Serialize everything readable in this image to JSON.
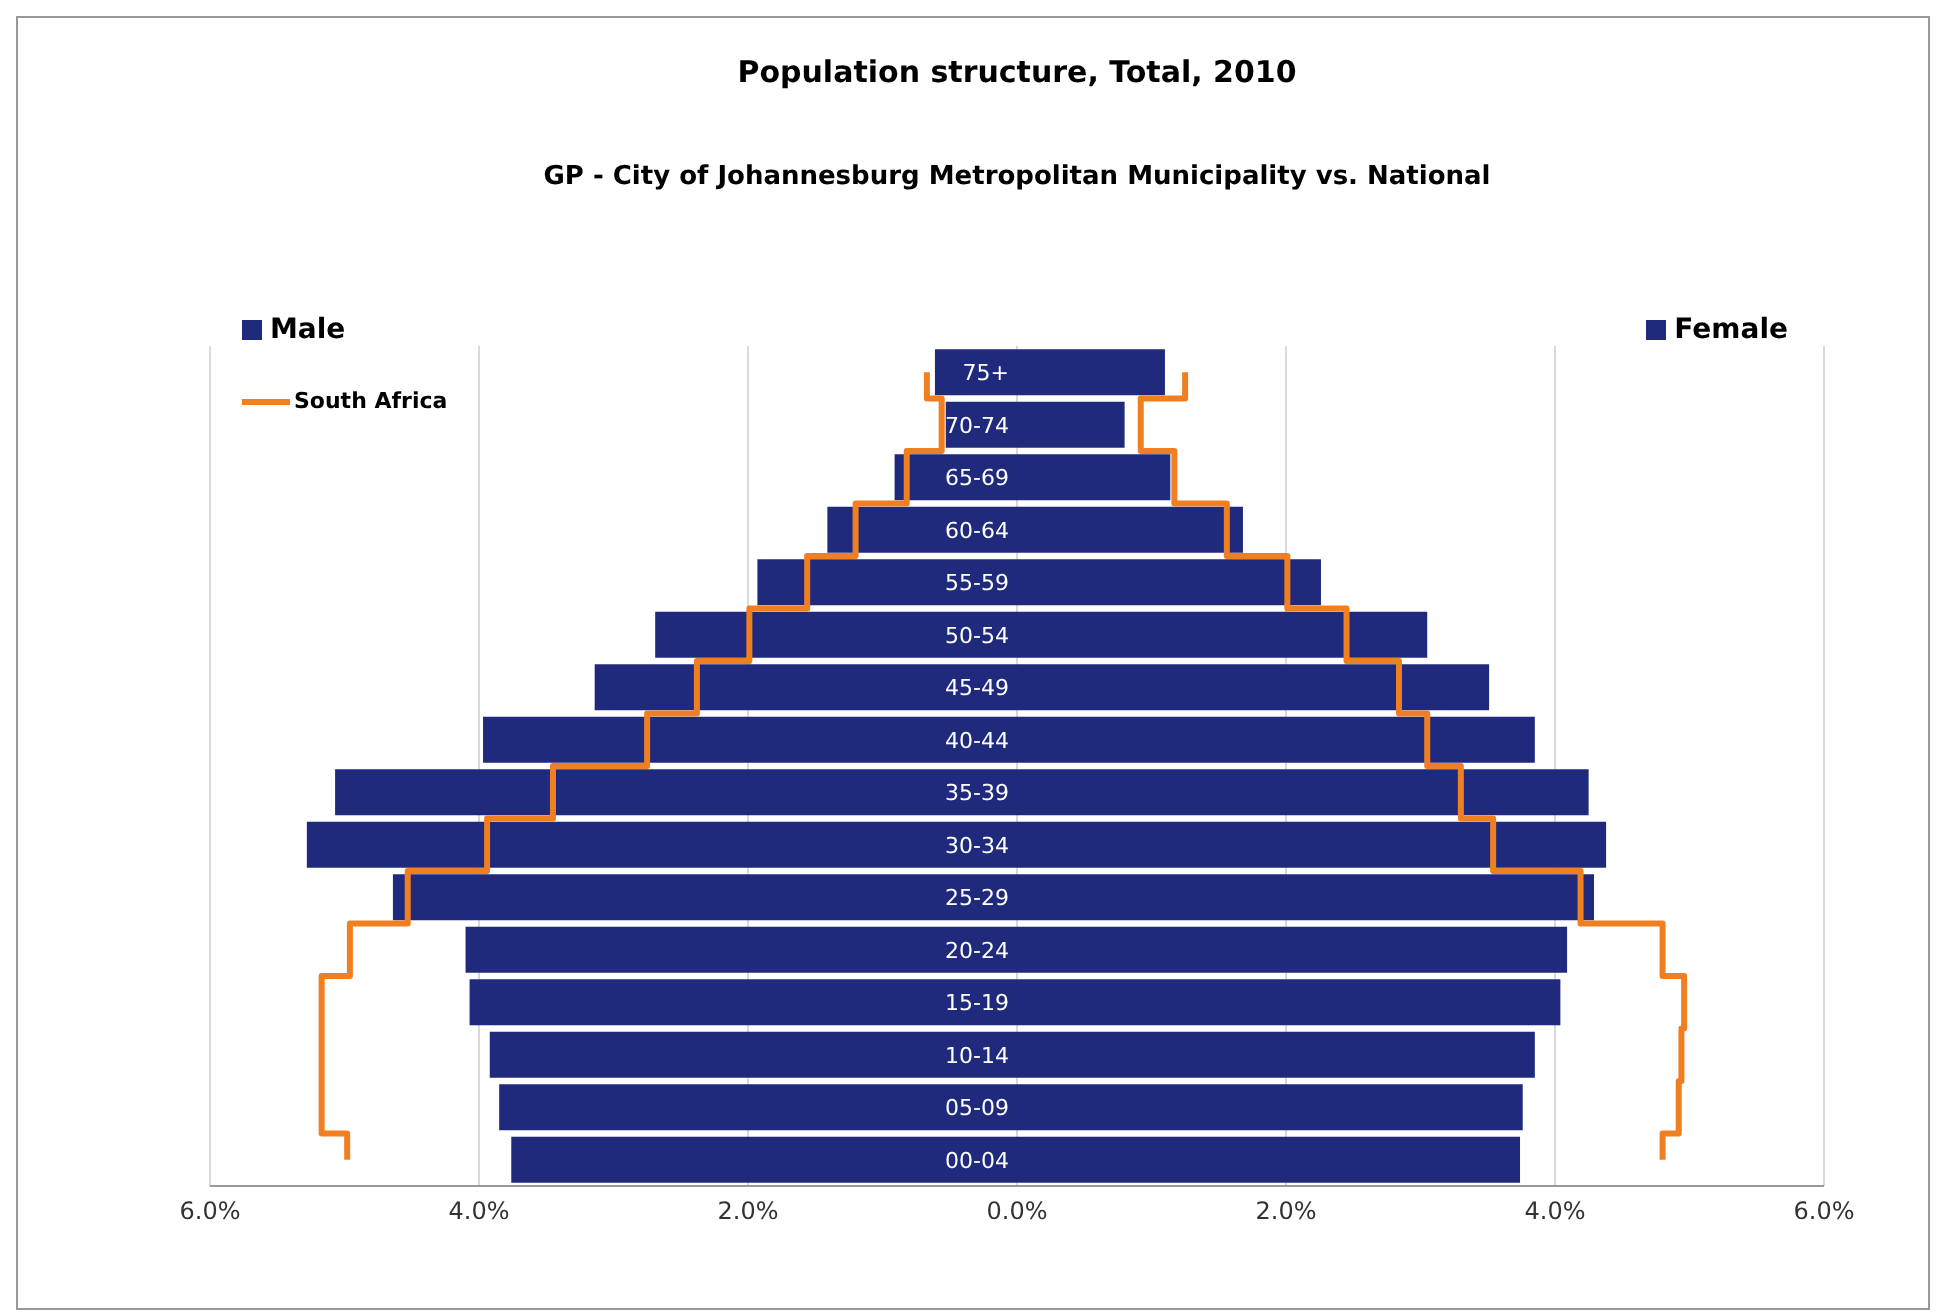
{
  "chart_data": {
    "type": "bar",
    "orientation": "horizontal",
    "stacked": true,
    "title": "Population structure, Total, 2010",
    "subtitle": "GP - City of Johannesburg Metropolitan Municipality vs. National",
    "categories": [
      "75+",
      "70-74",
      "65-69",
      "60-64",
      "55-59",
      "50-54",
      "45-49",
      "40-44",
      "35-39",
      "30-34",
      "25-29",
      "20-24",
      "15-19",
      "10-14",
      "05-09",
      "00-04"
    ],
    "series": [
      {
        "name": "Male",
        "color": "#1f2a7c",
        "values": [
          -0.61,
          -0.53,
          -0.91,
          -1.41,
          -1.93,
          -2.69,
          -3.14,
          -3.97,
          -5.07,
          -5.28,
          -4.64,
          -4.1,
          -4.07,
          -3.92,
          -3.85,
          -3.76
        ]
      },
      {
        "name": "Female",
        "color": "#1f2a7c",
        "values": [
          1.1,
          0.8,
          1.14,
          1.68,
          2.26,
          3.05,
          3.51,
          3.85,
          4.25,
          4.38,
          4.29,
          4.09,
          4.04,
          3.85,
          3.76,
          3.74
        ]
      },
      {
        "name": "South Africa",
        "type": "step",
        "color": "#f07f22",
        "values": [
          -0.67,
          -0.56,
          -0.82,
          -1.2,
          -1.56,
          -1.99,
          -2.38,
          -2.75,
          -3.45,
          -3.94,
          -4.53,
          -4.96,
          -5.17,
          -5.17,
          -5.17,
          -4.98
        ]
      },
      {
        "type": "step",
        "color": "#f07f22",
        "values": [
          1.25,
          0.92,
          1.17,
          1.56,
          2.01,
          2.45,
          2.84,
          3.05,
          3.3,
          3.54,
          4.19,
          4.8,
          4.96,
          4.94,
          4.92,
          4.8
        ]
      }
    ],
    "xlim": [
      -6,
      6
    ],
    "xticks": [
      {
        "value": -6,
        "label": "6.0%"
      },
      {
        "value": -4,
        "label": "4.0%"
      },
      {
        "value": -2,
        "label": "2.0%"
      },
      {
        "value": 0,
        "label": "0.0%"
      },
      {
        "value": 2,
        "label": "2.0%"
      },
      {
        "value": 4,
        "label": "4.0%"
      },
      {
        "value": 6,
        "label": "6.0%"
      }
    ],
    "grid": "x",
    "legend": "top left"
  }
}
